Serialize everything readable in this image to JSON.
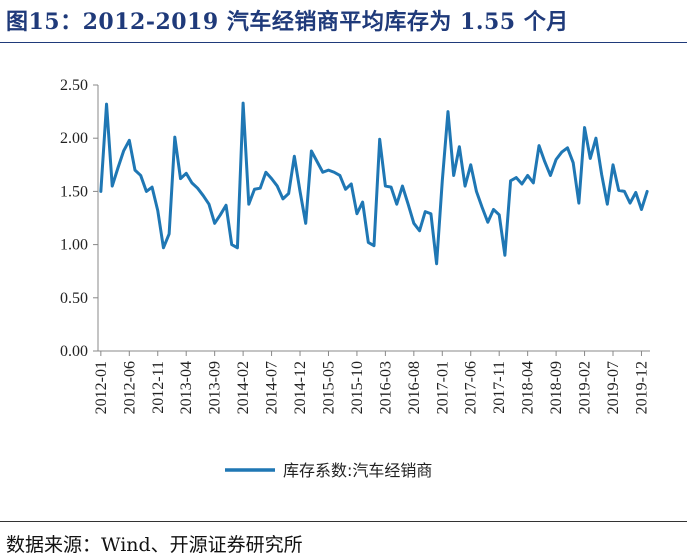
{
  "header": {
    "title": "图15：2012-2019 汽车经销商平均库存为 1.55 个月"
  },
  "footer": {
    "source": "数据来源：Wind、开源证券研究所"
  },
  "colors": {
    "series": "#1f77b4",
    "title": "#1f3a7a"
  },
  "chart_data": {
    "type": "line",
    "title": "2012-2019 汽车经销商平均库存为 1.55 个月",
    "ylim": [
      0,
      2.5
    ],
    "yticks": [
      "0.00",
      "0.50",
      "1.00",
      "1.50",
      "2.00",
      "2.50"
    ],
    "xtick_labels": [
      "2012-01",
      "2012-06",
      "2012-11",
      "2013-04",
      "2013-09",
      "2014-02",
      "2014-07",
      "2014-12",
      "2015-05",
      "2015-10",
      "2016-03",
      "2016-08",
      "2017-01",
      "2017-06",
      "2017-11",
      "2018-04",
      "2018-09",
      "2019-02",
      "2019-07",
      "2019-12"
    ],
    "x_start": "2012-01",
    "legend": "bottom-center",
    "grid": false,
    "series": [
      {
        "name": "库存系数:汽车经销商",
        "values": [
          1.5,
          2.32,
          1.55,
          1.72,
          1.88,
          1.98,
          1.7,
          1.65,
          1.5,
          1.54,
          1.32,
          0.97,
          1.1,
          2.01,
          1.62,
          1.67,
          1.58,
          1.53,
          1.46,
          1.38,
          1.2,
          1.28,
          1.37,
          1.0,
          0.97,
          2.33,
          1.38,
          1.52,
          1.53,
          1.68,
          1.62,
          1.55,
          1.43,
          1.48,
          1.83,
          1.5,
          1.2,
          1.88,
          1.78,
          1.68,
          1.7,
          1.68,
          1.65,
          1.52,
          1.57,
          1.29,
          1.4,
          1.02,
          0.99,
          1.99,
          1.55,
          1.54,
          1.38,
          1.55,
          1.38,
          1.2,
          1.13,
          1.31,
          1.29,
          0.82,
          1.6,
          2.25,
          1.65,
          1.92,
          1.55,
          1.75,
          1.5,
          1.35,
          1.21,
          1.33,
          1.28,
          0.9,
          1.6,
          1.63,
          1.57,
          1.65,
          1.58,
          1.93,
          1.78,
          1.65,
          1.8,
          1.87,
          1.91,
          1.77,
          1.39,
          2.1,
          1.81,
          2.0,
          1.66,
          1.38,
          1.75,
          1.51,
          1.5,
          1.39,
          1.49,
          1.33,
          1.5
        ]
      }
    ]
  }
}
